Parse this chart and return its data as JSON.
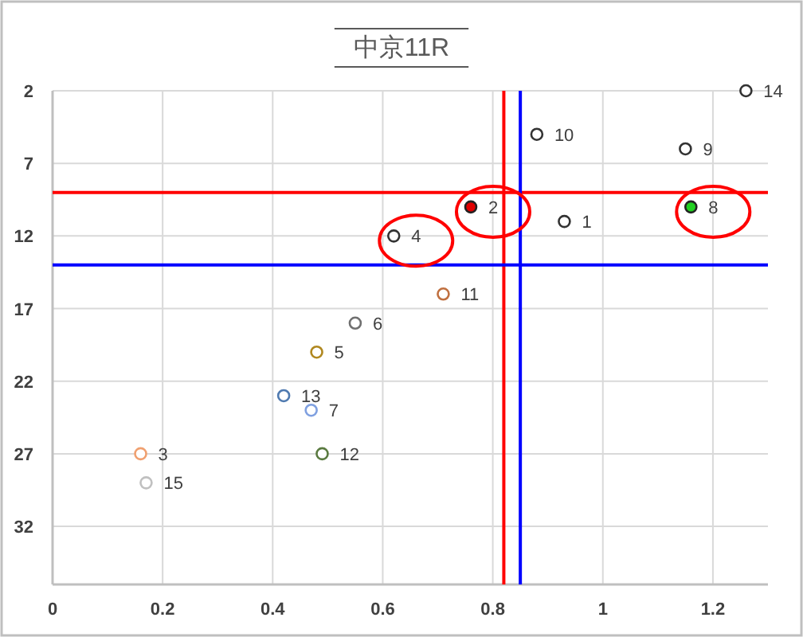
{
  "chart_data": {
    "type": "scatter",
    "title": "中京11R",
    "xlim": [
      0,
      1.3
    ],
    "ylim": [
      36,
      2
    ],
    "xticks": [
      0,
      0.2,
      0.4,
      0.6,
      0.8,
      1,
      1.2
    ],
    "yticks": [
      2,
      7,
      12,
      17,
      22,
      27,
      32
    ],
    "grid": true,
    "marker": "circle",
    "series": [
      {
        "x": [
          1.26,
          0.88,
          1.15,
          0.93,
          0.71,
          0.55,
          0.48,
          0.42,
          0.47,
          0.16,
          0.49,
          0.17
        ],
        "values": [
          2,
          5,
          6,
          11,
          16,
          18,
          20,
          23,
          24,
          27,
          27,
          29
        ],
        "colors": [
          "#333333",
          "#333333",
          "#333333",
          "#333333",
          "#c07040",
          "#707070",
          "#b08820",
          "#4f7ab0",
          "#7fa0e0",
          "#f0a070",
          "#5a7a40",
          "#c0c0c0"
        ]
      },
      {
        "x": [
          0.62
        ],
        "values": [
          12
        ],
        "colors": [
          "#333333"
        ]
      },
      {
        "x": [
          0.76,
          1.16
        ],
        "values": [
          10,
          10
        ],
        "colors": [
          "#e00000",
          "#20d020"
        ]
      }
    ],
    "ref_lines": [
      {
        "axis": "y",
        "value": 9,
        "color": "#ff0000"
      },
      {
        "axis": "x",
        "value": 0.82,
        "color": "#ff0000"
      },
      {
        "axis": "y",
        "value": 14,
        "color": "#0000ff"
      },
      {
        "axis": "x",
        "value": 0.85,
        "color": "#0000ff"
      }
    ],
    "annotations": [
      {
        "text": "14",
        "x": 1.26,
        "y": 2
      },
      {
        "text": "10",
        "x": 0.88,
        "y": 5
      },
      {
        "text": "9",
        "x": 1.15,
        "y": 6
      },
      {
        "text": "2",
        "x": 0.76,
        "y": 10
      },
      {
        "text": "8",
        "x": 1.16,
        "y": 10
      },
      {
        "text": "1",
        "x": 0.93,
        "y": 11
      },
      {
        "text": "4",
        "x": 0.62,
        "y": 12
      },
      {
        "text": "11",
        "x": 0.71,
        "y": 16
      },
      {
        "text": "6",
        "x": 0.55,
        "y": 18
      },
      {
        "text": "5",
        "x": 0.48,
        "y": 20
      },
      {
        "text": "13",
        "x": 0.42,
        "y": 23
      },
      {
        "text": "7",
        "x": 0.47,
        "y": 24
      },
      {
        "text": "3",
        "x": 0.16,
        "y": 27
      },
      {
        "text": "12",
        "x": 0.49,
        "y": 27
      },
      {
        "text": "15",
        "x": 0.17,
        "y": 29
      }
    ]
  }
}
